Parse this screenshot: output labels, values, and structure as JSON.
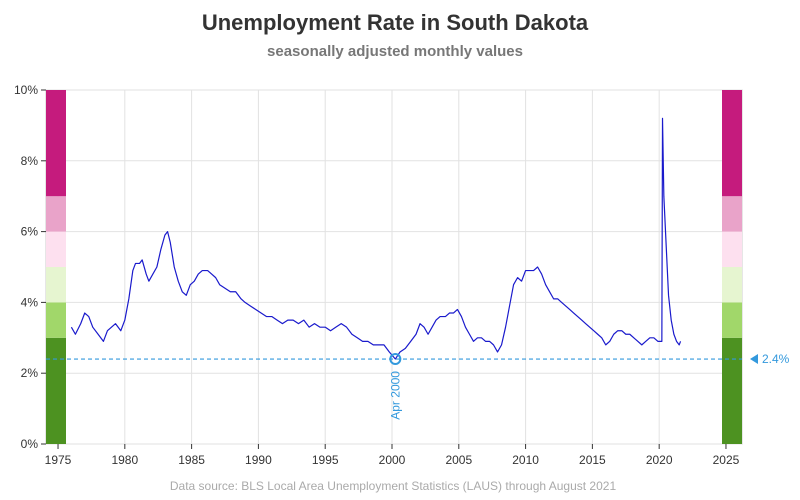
{
  "chart_data": {
    "type": "line",
    "title": "Unemployment Rate in South Dakota",
    "subtitle": "seasonally adjusted monthly values",
    "footer": "Data source: BLS Local Area Unemployment Statistics (LAUS) through August 2021",
    "xlim": [
      1974.1,
      2026.2
    ],
    "ylim": [
      0,
      10
    ],
    "grid": true,
    "x_ticks": [
      "1975",
      "1980",
      "1985",
      "1990",
      "1995",
      "2000",
      "2005",
      "2010",
      "2015",
      "2020",
      "2025"
    ],
    "y_ticks": [
      "0%",
      "2%",
      "4%",
      "6%",
      "8%",
      "10%"
    ],
    "color_bands": [
      {
        "from": 0,
        "to": 3,
        "color": "#4d9221"
      },
      {
        "from": 3,
        "to": 4,
        "color": "#a1d76a"
      },
      {
        "from": 4,
        "to": 5,
        "color": "#e6f5d0"
      },
      {
        "from": 5,
        "to": 6,
        "color": "#fde0ef"
      },
      {
        "from": 6,
        "to": 7,
        "color": "#e9a3c9"
      },
      {
        "from": 7,
        "to": 10,
        "color": "#c51b7d"
      }
    ],
    "reference_line": {
      "value": 2.4,
      "label": "2.4%",
      "color": "#3399dd"
    },
    "min_point": {
      "x": 2000.25,
      "y": 2.4,
      "label": "Apr 2000",
      "color": "#3399dd"
    },
    "series": [
      {
        "color": "#1a1acc",
        "points": [
          [
            1976.0,
            3.3
          ],
          [
            1976.3,
            3.1
          ],
          [
            1976.7,
            3.4
          ],
          [
            1977.0,
            3.7
          ],
          [
            1977.3,
            3.6
          ],
          [
            1977.6,
            3.3
          ],
          [
            1978.0,
            3.1
          ],
          [
            1978.4,
            2.9
          ],
          [
            1978.7,
            3.2
          ],
          [
            1979.0,
            3.3
          ],
          [
            1979.3,
            3.4
          ],
          [
            1979.7,
            3.2
          ],
          [
            1980.0,
            3.5
          ],
          [
            1980.3,
            4.1
          ],
          [
            1980.6,
            4.9
          ],
          [
            1980.8,
            5.1
          ],
          [
            1981.1,
            5.1
          ],
          [
            1981.3,
            5.2
          ],
          [
            1981.6,
            4.8
          ],
          [
            1981.8,
            4.6
          ],
          [
            1982.1,
            4.8
          ],
          [
            1982.4,
            5.0
          ],
          [
            1982.7,
            5.5
          ],
          [
            1983.0,
            5.9
          ],
          [
            1983.2,
            6.0
          ],
          [
            1983.4,
            5.7
          ],
          [
            1983.7,
            5.0
          ],
          [
            1984.0,
            4.6
          ],
          [
            1984.3,
            4.3
          ],
          [
            1984.6,
            4.2
          ],
          [
            1984.9,
            4.5
          ],
          [
            1985.2,
            4.6
          ],
          [
            1985.5,
            4.8
          ],
          [
            1985.8,
            4.9
          ],
          [
            1986.2,
            4.9
          ],
          [
            1986.5,
            4.8
          ],
          [
            1986.8,
            4.7
          ],
          [
            1987.1,
            4.5
          ],
          [
            1987.5,
            4.4
          ],
          [
            1987.9,
            4.3
          ],
          [
            1988.3,
            4.3
          ],
          [
            1988.7,
            4.1
          ],
          [
            1989.0,
            4.0
          ],
          [
            1989.4,
            3.9
          ],
          [
            1989.8,
            3.8
          ],
          [
            1990.2,
            3.7
          ],
          [
            1990.6,
            3.6
          ],
          [
            1991.0,
            3.6
          ],
          [
            1991.4,
            3.5
          ],
          [
            1991.8,
            3.4
          ],
          [
            1992.2,
            3.5
          ],
          [
            1992.6,
            3.5
          ],
          [
            1993.0,
            3.4
          ],
          [
            1993.4,
            3.5
          ],
          [
            1993.8,
            3.3
          ],
          [
            1994.2,
            3.4
          ],
          [
            1994.6,
            3.3
          ],
          [
            1995.0,
            3.3
          ],
          [
            1995.4,
            3.2
          ],
          [
            1995.8,
            3.3
          ],
          [
            1996.2,
            3.4
          ],
          [
            1996.6,
            3.3
          ],
          [
            1997.0,
            3.1
          ],
          [
            1997.4,
            3.0
          ],
          [
            1997.8,
            2.9
          ],
          [
            1998.2,
            2.9
          ],
          [
            1998.6,
            2.8
          ],
          [
            1999.0,
            2.8
          ],
          [
            1999.4,
            2.8
          ],
          [
            1999.8,
            2.6
          ],
          [
            2000.25,
            2.4
          ],
          [
            2000.6,
            2.6
          ],
          [
            2001.0,
            2.7
          ],
          [
            2001.4,
            2.9
          ],
          [
            2001.8,
            3.1
          ],
          [
            2002.1,
            3.4
          ],
          [
            2002.4,
            3.3
          ],
          [
            2002.7,
            3.1
          ],
          [
            2003.0,
            3.3
          ],
          [
            2003.3,
            3.5
          ],
          [
            2003.6,
            3.6
          ],
          [
            2004.0,
            3.6
          ],
          [
            2004.3,
            3.7
          ],
          [
            2004.6,
            3.7
          ],
          [
            2004.9,
            3.8
          ],
          [
            2005.2,
            3.6
          ],
          [
            2005.5,
            3.3
          ],
          [
            2005.8,
            3.1
          ],
          [
            2006.1,
            2.9
          ],
          [
            2006.4,
            3.0
          ],
          [
            2006.7,
            3.0
          ],
          [
            2007.0,
            2.9
          ],
          [
            2007.3,
            2.9
          ],
          [
            2007.6,
            2.8
          ],
          [
            2007.9,
            2.6
          ],
          [
            2008.2,
            2.8
          ],
          [
            2008.5,
            3.3
          ],
          [
            2008.8,
            3.9
          ],
          [
            2009.1,
            4.5
          ],
          [
            2009.4,
            4.7
          ],
          [
            2009.7,
            4.6
          ],
          [
            2010.0,
            4.9
          ],
          [
            2010.3,
            4.9
          ],
          [
            2010.6,
            4.9
          ],
          [
            2010.9,
            5.0
          ],
          [
            2011.2,
            4.8
          ],
          [
            2011.5,
            4.5
          ],
          [
            2011.8,
            4.3
          ],
          [
            2012.1,
            4.1
          ],
          [
            2012.4,
            4.1
          ],
          [
            2012.7,
            4.0
          ],
          [
            2013.0,
            3.9
          ],
          [
            2013.3,
            3.8
          ],
          [
            2013.6,
            3.7
          ],
          [
            2013.9,
            3.6
          ],
          [
            2014.2,
            3.5
          ],
          [
            2014.5,
            3.4
          ],
          [
            2014.8,
            3.3
          ],
          [
            2015.1,
            3.2
          ],
          [
            2015.4,
            3.1
          ],
          [
            2015.7,
            3.0
          ],
          [
            2016.0,
            2.8
          ],
          [
            2016.3,
            2.9
          ],
          [
            2016.6,
            3.1
          ],
          [
            2016.9,
            3.2
          ],
          [
            2017.2,
            3.2
          ],
          [
            2017.5,
            3.1
          ],
          [
            2017.8,
            3.1
          ],
          [
            2018.1,
            3.0
          ],
          [
            2018.4,
            2.9
          ],
          [
            2018.7,
            2.8
          ],
          [
            2019.0,
            2.9
          ],
          [
            2019.3,
            3.0
          ],
          [
            2019.6,
            3.0
          ],
          [
            2019.9,
            2.9
          ],
          [
            2020.2,
            2.9
          ],
          [
            2020.25,
            9.2
          ],
          [
            2020.35,
            7.0
          ],
          [
            2020.5,
            5.8
          ],
          [
            2020.7,
            4.2
          ],
          [
            2020.9,
            3.5
          ],
          [
            2021.1,
            3.1
          ],
          [
            2021.3,
            2.9
          ],
          [
            2021.5,
            2.8
          ],
          [
            2021.6,
            2.9
          ]
        ]
      }
    ]
  }
}
